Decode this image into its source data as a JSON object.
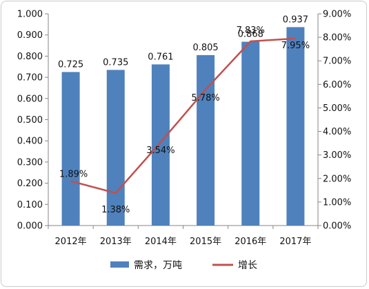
{
  "chart_data": {
    "type": "bar+line",
    "categories": [
      "2012年",
      "2013年",
      "2014年",
      "2015年",
      "2016年",
      "2017年"
    ],
    "series": [
      {
        "name": "需求，万吨",
        "type": "bar",
        "axis": "left",
        "values": [
          0.725,
          0.735,
          0.761,
          0.805,
          0.868,
          0.937
        ],
        "labels": [
          "0.725",
          "0.735",
          "0.761",
          "0.805",
          "0.868",
          "0.937"
        ]
      },
      {
        "name": "增长",
        "type": "line",
        "axis": "right",
        "values": [
          1.89,
          1.38,
          3.54,
          5.78,
          7.83,
          7.95
        ],
        "labels": [
          "1.89%",
          "1.38%",
          "3.54%",
          "5.78%",
          "7.83%",
          "7.95%"
        ]
      }
    ],
    "left_axis": {
      "ylim": [
        0,
        1.0
      ],
      "ticks": [
        "0.000",
        "0.100",
        "0.200",
        "0.300",
        "0.400",
        "0.500",
        "0.600",
        "0.700",
        "0.800",
        "0.900",
        "1.000"
      ]
    },
    "right_axis": {
      "ylim": [
        0,
        9
      ],
      "ticks": [
        "0.00%",
        "1.00%",
        "2.00%",
        "3.00%",
        "4.00%",
        "5.00%",
        "6.00%",
        "7.00%",
        "8.00%",
        "9.00%"
      ]
    },
    "grid": false,
    "legend": "bottom",
    "colors": {
      "bar": "#4f81bd",
      "line": "#c0504d",
      "axis": "#868686"
    }
  }
}
